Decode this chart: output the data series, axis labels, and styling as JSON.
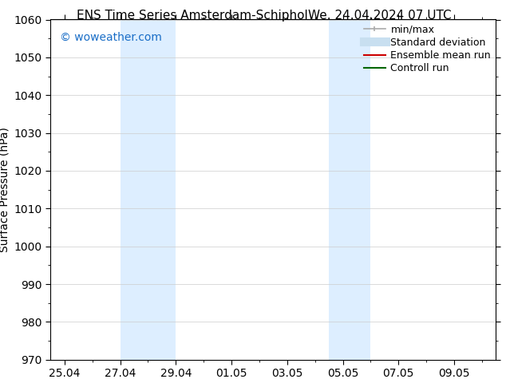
{
  "title_left": "ENS Time Series Amsterdam-Schiphol",
  "title_right": "We. 24.04.2024 07 UTC",
  "ylabel": "Surface Pressure (hPa)",
  "ylim": [
    970,
    1060
  ],
  "yticks": [
    970,
    980,
    990,
    1000,
    1010,
    1020,
    1030,
    1040,
    1050,
    1060
  ],
  "xtick_labels": [
    "25.04",
    "27.04",
    "29.04",
    "01.05",
    "03.05",
    "05.05",
    "07.05",
    "09.05"
  ],
  "xtick_positions": [
    0,
    2,
    4,
    6,
    8,
    10,
    12,
    14
  ],
  "xlim": [
    -0.5,
    15.5
  ],
  "shaded_bands": [
    {
      "x_start": 2.0,
      "x_end": 4.0
    },
    {
      "x_start": 9.5,
      "x_end": 11.0
    }
  ],
  "shaded_color": "#ddeeff",
  "background_color": "#ffffff",
  "watermark_text": "© woweather.com",
  "watermark_color": "#1a6ec7",
  "legend_items": [
    {
      "label": "min/max",
      "color": "#aaaaaa",
      "lw": 1.2,
      "style": "solid",
      "type": "minmax"
    },
    {
      "label": "Standard deviation",
      "color": "#c8dff0",
      "lw": 8,
      "style": "solid",
      "type": "line"
    },
    {
      "label": "Ensemble mean run",
      "color": "#cc0000",
      "lw": 1.5,
      "style": "solid",
      "type": "line"
    },
    {
      "label": "Controll run",
      "color": "#006600",
      "lw": 1.5,
      "style": "solid",
      "type": "line"
    }
  ],
  "grid_color": "#cccccc",
  "tick_color": "#000000",
  "font_size": 10,
  "title_font_size": 11,
  "legend_font_size": 9
}
